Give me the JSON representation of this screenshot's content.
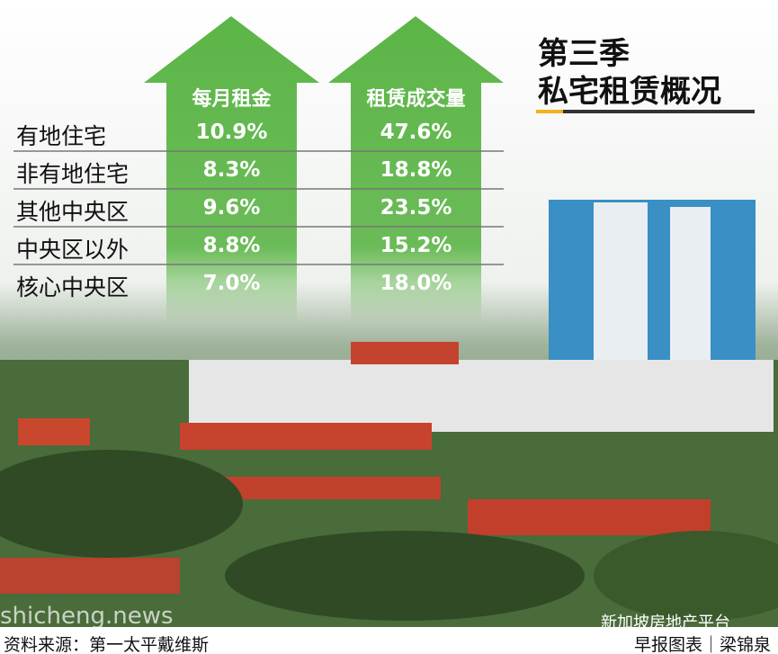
{
  "title": {
    "line1": "第三季",
    "line2": "私宅租赁概况"
  },
  "table": {
    "headers": [
      "每月租金",
      "租赁成交量"
    ],
    "rows": [
      [
        "有地住宅",
        "10.9%",
        "47.6%"
      ],
      [
        "非有地住宅",
        "8.3%",
        "18.8%"
      ],
      [
        "其他中央区",
        "9.6%",
        "23.5%"
      ],
      [
        "中央区以外",
        "8.8%",
        "15.2%"
      ],
      [
        "核心中央区",
        "7.0%",
        "18.0%"
      ]
    ]
  },
  "footer": {
    "source": "资料来源：第一太平戴维斯",
    "credit": "早报图表｜梁锦泉"
  },
  "watermarks": {
    "site": "shicheng.news",
    "account": "新加坡房地产平台"
  }
}
